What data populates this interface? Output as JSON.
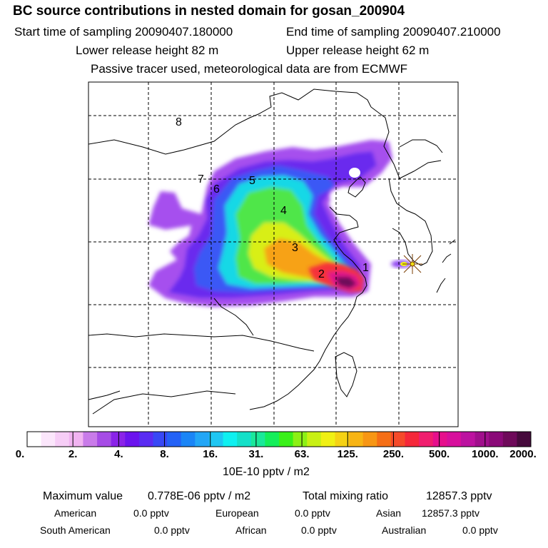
{
  "header": {
    "title": "BC  source contributions in nested domain for gosan_200904",
    "start_label": "Start time of sampling 20090407.180000",
    "end_label": "End time of sampling 20090407.210000",
    "lower_label": "Lower release height   82 m",
    "upper_label": "Upper release height   62 m",
    "passive_label": "Passive tracer used, meteorological data are from ECMWF"
  },
  "map": {
    "source_labels": [
      "1",
      "2",
      "3",
      "4",
      "5",
      "6",
      "7",
      "8"
    ],
    "receptor_marker": "star-marker"
  },
  "legend": {
    "ticks": [
      "0.",
      "2.",
      "4.",
      "8.",
      "16.",
      "31.",
      "63.",
      "125.",
      "250.",
      "500.",
      "1000.",
      "2000."
    ],
    "unit": "10E-10 pptv / m2",
    "colors": [
      "#ffffff",
      "#fbe6fb",
      "#f6cdf6",
      "#f1b3f1",
      "#c97be9",
      "#a64ce6",
      "#8a23e8",
      "#6b14ee",
      "#5a2cf2",
      "#3848f5",
      "#2462f6",
      "#1b85f6",
      "#23a6f6",
      "#1fc6f2",
      "#0ff0f0",
      "#14e0c8",
      "#1ae89a",
      "#14ee5a",
      "#3af019",
      "#8cf015",
      "#c8f014",
      "#f0f014",
      "#f5d214",
      "#f7b414",
      "#f79614",
      "#f56e16",
      "#f54a2a",
      "#f5283a",
      "#f01e6e",
      "#e60f8c",
      "#d70f9c",
      "#bc12a0",
      "#a00f8c",
      "#8a0a78",
      "#6e0a5a",
      "#460a3c"
    ]
  },
  "stats": {
    "max_label": "Maximum value",
    "max_value": "0.778E-06 pptv / m2",
    "total_label": "Total mixing ratio",
    "total_value": "12857.3 pptv",
    "american_label": "American",
    "american_value": "0.0 pptv",
    "european_label": "European",
    "european_value": "0.0 pptv",
    "asian_label": "Asian",
    "asian_value": "12857.3 pptv",
    "south_american_label": "South American",
    "south_american_value": "0.0 pptv",
    "african_label": "African",
    "african_value": "0.0 pptv",
    "australian_label": "Australian",
    "australian_value": "0.0 pptv"
  }
}
